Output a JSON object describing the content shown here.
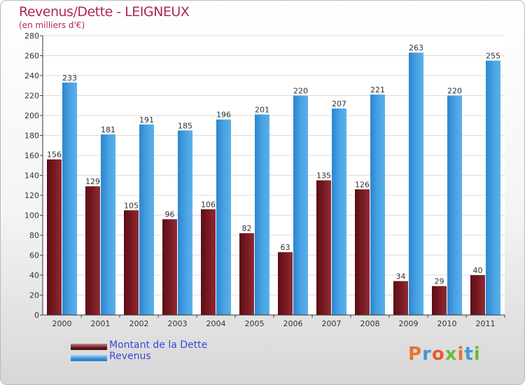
{
  "chart_data": {
    "type": "bar",
    "title": "Revenus/Dette - LEIGNEUX",
    "subtitle": "(en milliers d'€)",
    "categories": [
      "2000",
      "2001",
      "2002",
      "2003",
      "2004",
      "2005",
      "2006",
      "2007",
      "2008",
      "2009",
      "2010",
      "2011"
    ],
    "series": [
      {
        "name": "Montant de la Dette",
        "color": "#7b1a22",
        "values": [
          156,
          129,
          105,
          96,
          106,
          82,
          63,
          135,
          126,
          34,
          29,
          40
        ]
      },
      {
        "name": "Revenus",
        "color": "#4aa3e4",
        "values": [
          233,
          181,
          191,
          185,
          196,
          201,
          220,
          207,
          221,
          263,
          220,
          255
        ]
      }
    ],
    "ylim": [
      0,
      280
    ],
    "yticks": [
      0,
      20,
      40,
      60,
      80,
      100,
      120,
      140,
      160,
      180,
      200,
      220,
      240,
      260,
      280
    ],
    "grid": true,
    "legend_position": "bottom-left"
  },
  "logo": {
    "text": "Proxiti",
    "colors": [
      "#e8732e",
      "#3c9ad8",
      "#e85a2e",
      "#6cbb3c",
      "#e8732e",
      "#3c9ad8",
      "#6cbb3c"
    ]
  }
}
